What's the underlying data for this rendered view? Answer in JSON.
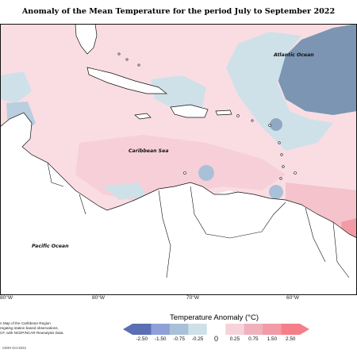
{
  "title": "Anomaly of the Mean Temperature for the period July to September 2022",
  "map": {
    "ocean_labels": {
      "atlantic": "Atlantic Ocean",
      "caribbean": "Caribbean Sea",
      "pacific": "Pacific Ocean"
    },
    "longitude_labels": [
      "80°W",
      "80°W",
      "70°W",
      "60°W"
    ]
  },
  "legend": {
    "title": "Temperature Anomaly (°C)",
    "ticks": [
      "-2.50",
      "-1.50",
      "-0.75",
      "-0.25",
      "0",
      "0.25",
      "0.75",
      "1.50",
      "2.50"
    ],
    "colors": [
      "#5b6fb3",
      "#8fa0d8",
      "#a9c1d8",
      "#cfe1e8",
      "#ffffff",
      "#f6d3da",
      "#efb2bd",
      "#f29aa5",
      "#f57f88"
    ]
  },
  "credit": {
    "lines": [
      "n Map of the Caribbean Region",
      "regating station based observations,",
      "CF, with NCEP/NCAR Reanalysis Data."
    ],
    "copyright": "CIMH Oct-2022"
  }
}
